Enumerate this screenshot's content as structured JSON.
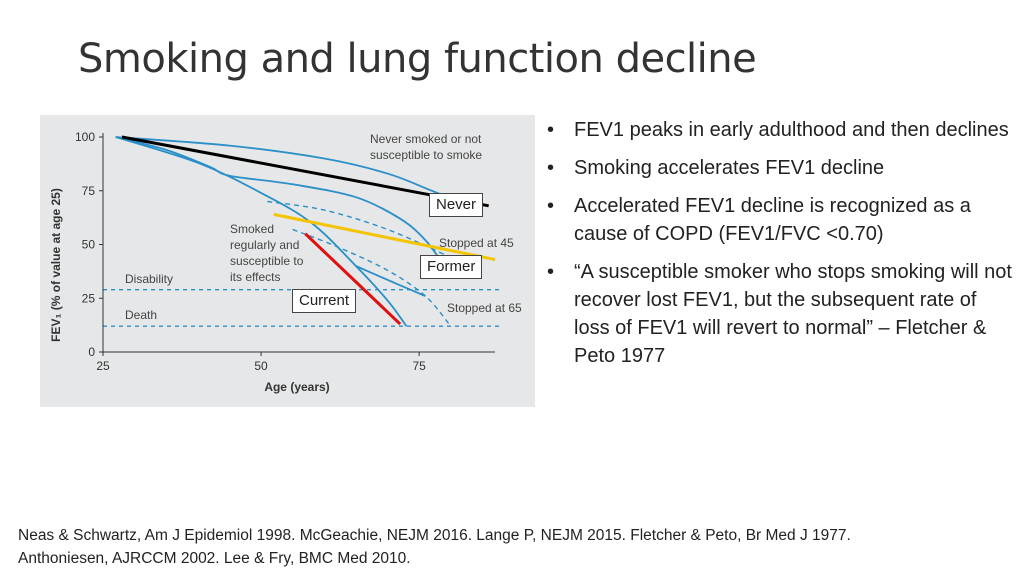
{
  "slide": {
    "title": "Smoking and lung function decline"
  },
  "chart_data": {
    "type": "line",
    "xlabel": "Age (years)",
    "ylabel": "FEV₁ (% of value at age 25)",
    "xlim": [
      25,
      87
    ],
    "ylim": [
      0,
      100
    ],
    "x_ticks": [
      25,
      50,
      75
    ],
    "y_ticks": [
      0,
      25,
      50,
      75,
      100
    ],
    "reference_lines": [
      {
        "name": "Disability",
        "y": 29
      },
      {
        "name": "Death",
        "y": 12
      }
    ],
    "series": [
      {
        "name": "Never smoked or not susceptible to smoke",
        "style": "curve",
        "color": "#2b8fc8",
        "x": [
          27,
          45,
          60,
          70,
          77,
          83
        ],
        "y": [
          100,
          96,
          90,
          83,
          75,
          68
        ]
      },
      {
        "name": "Smoked regularly and susceptible to its effects",
        "style": "curve",
        "color": "#2b8fc8",
        "x": [
          27,
          40,
          50,
          58,
          65,
          70,
          73
        ],
        "y": [
          100,
          88,
          74,
          60,
          40,
          24,
          12
        ]
      },
      {
        "name": "Stopped at 45",
        "style": "curve",
        "color": "#2b8fc8",
        "x": [
          27,
          35,
          42,
          45,
          55,
          65,
          72,
          76,
          79
        ],
        "y": [
          100,
          94,
          86,
          82,
          78,
          72,
          62,
          52,
          40
        ]
      },
      {
        "name": "Stopped at 65",
        "style": "curve",
        "color": "#2b8fc8",
        "x": [
          65,
          72,
          76
        ],
        "y": [
          40,
          31,
          26
        ]
      },
      {
        "name": "Smoked trajectory (dashed)",
        "style": "dashed",
        "color": "#2b8fc8",
        "x": [
          51,
          60,
          70,
          80
        ],
        "y": [
          70,
          66,
          57,
          44
        ]
      },
      {
        "name": "Stopped at 65 (dashed)",
        "style": "dashed",
        "color": "#2b8fc8",
        "x": [
          55,
          62,
          70,
          76,
          80
        ],
        "y": [
          57,
          49,
          38,
          26,
          12
        ]
      },
      {
        "name": "Never",
        "style": "overlay",
        "color": "#000000",
        "x": [
          28,
          86
        ],
        "y": [
          100,
          68
        ]
      },
      {
        "name": "Former",
        "style": "overlay",
        "color": "#f5c400",
        "x": [
          52,
          87
        ],
        "y": [
          64,
          43
        ]
      },
      {
        "name": "Current",
        "style": "overlay",
        "color": "#e01010",
        "x": [
          57,
          72
        ],
        "y": [
          55,
          13
        ]
      }
    ],
    "annotations": [
      {
        "id": "never-text",
        "lines": [
          "Never smoked or not",
          "susceptible to smoke"
        ]
      },
      {
        "id": "smoked-text",
        "lines": [
          "Smoked",
          "regularly and",
          "susceptible to",
          "its effects"
        ]
      },
      {
        "id": "stopped45",
        "lines": [
          "Stopped at 45"
        ]
      },
      {
        "id": "stopped65",
        "lines": [
          "Stopped at 65"
        ]
      },
      {
        "id": "disability",
        "lines": [
          "Disability"
        ]
      },
      {
        "id": "death",
        "lines": [
          "Death"
        ]
      }
    ],
    "callouts": {
      "never": "Never",
      "former": "Former",
      "current": "Current"
    }
  },
  "bullets": [
    "FEV1 peaks in early adulthood and then declines",
    "Smoking accelerates FEV1 decline",
    "Accelerated FEV1 decline is recognized as a cause of COPD (FEV1/FVC <0.70)",
    "“A susceptible smoker who stops smoking will not recover lost FEV1, but the subsequent rate of loss of FEV1 will revert to normal” – Fletcher & Peto 1977"
  ],
  "references": {
    "line1": "Neas & Schwartz, Am J Epidemiol 1998. McGeachie, NEJM 2016. Lange P, NEJM 2015.   Fletcher & Peto, Br Med J 1977.",
    "line2": "Anthoniesen, AJRCCM 2002. Lee & Fry, BMC Med 2010."
  }
}
